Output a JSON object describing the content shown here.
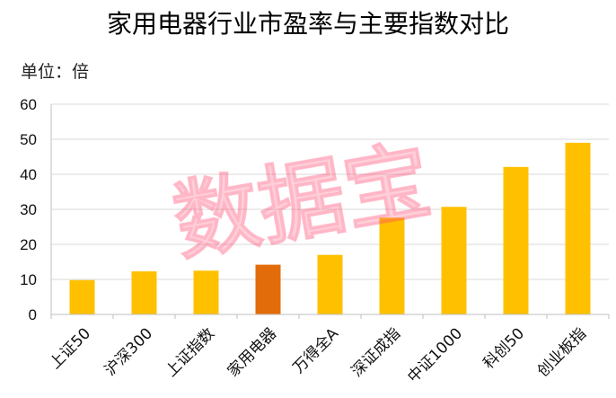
{
  "chart_data": {
    "type": "bar",
    "title": "家用电器行业市盈率与主要指数对比",
    "unit_label": "单位：倍",
    "categories": [
      "上证50",
      "沪深300",
      "上证指数",
      "家用电器",
      "万得全A",
      "深证成指",
      "中证1000",
      "科创50",
      "创业板指"
    ],
    "values": [
      9.8,
      12.3,
      12.5,
      14.2,
      17.0,
      27.6,
      30.7,
      42.1,
      49.0
    ],
    "ylim": [
      0,
      60
    ],
    "yticks": [
      0,
      10,
      20,
      30,
      40,
      50,
      60
    ],
    "grid": true,
    "bar_color": "#FFC000",
    "highlight_color": "#E36C0A",
    "highlight_category": "家用电器",
    "watermark": "数据宝"
  }
}
